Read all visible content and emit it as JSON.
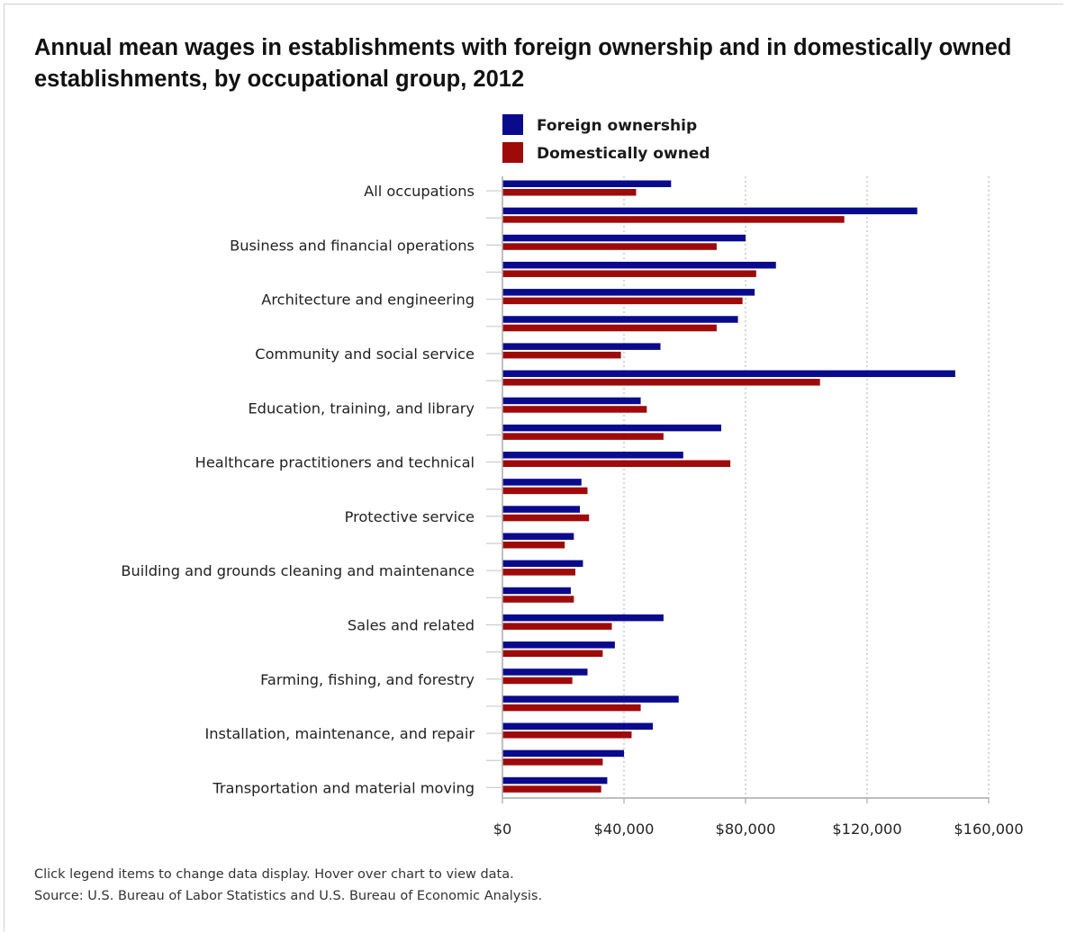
{
  "chart_data": {
    "type": "bar",
    "orientation": "horizontal",
    "title": "Annual mean wages in establishments with foreign ownership and in domestically owned establishments, by occupational group, 2012",
    "categories": [
      "All occupations",
      "",
      "Business and financial operations",
      "",
      "Architecture and engineering",
      "",
      "Community and social service",
      "",
      "Education, training, and library",
      "",
      "Healthcare practitioners and technical",
      "",
      "Protective service",
      "",
      "Building and grounds cleaning and maintenance",
      "",
      "Sales and related",
      "",
      "Farming, fishing, and forestry",
      "",
      "Installation, maintenance, and repair",
      "",
      "Transportation and material moving"
    ],
    "series": [
      {
        "name": "Foreign ownership",
        "color": "#0a0a8c",
        "values": [
          55500,
          136500,
          80000,
          90000,
          83000,
          77500,
          52000,
          149000,
          45500,
          72000,
          59500,
          26000,
          25500,
          23500,
          26500,
          22500,
          53000,
          37000,
          28000,
          58000,
          49500,
          40000,
          34500
        ]
      },
      {
        "name": "Domestically owned",
        "color": "#9e0a0a",
        "values": [
          44000,
          112500,
          70500,
          83500,
          79000,
          70500,
          39000,
          104500,
          47500,
          53000,
          75000,
          28000,
          28500,
          20500,
          24000,
          23500,
          36000,
          33000,
          23000,
          45500,
          42500,
          33000,
          32500
        ]
      }
    ],
    "xlim": [
      0,
      160000
    ],
    "xticks": [
      0,
      40000,
      80000,
      120000,
      160000
    ],
    "xtick_labels": [
      "$0",
      "$40,000",
      "$80,000",
      "$120,000",
      "$160,000"
    ],
    "xlabel": "",
    "ylabel": "",
    "grid": "vertical dotted",
    "legend_position": "top-center"
  },
  "footer": {
    "note": "Click legend items to change data display. Hover over chart to view data.",
    "source": "Source: U.S. Bureau of Labor Statistics and U.S. Bureau of Economic Analysis."
  }
}
